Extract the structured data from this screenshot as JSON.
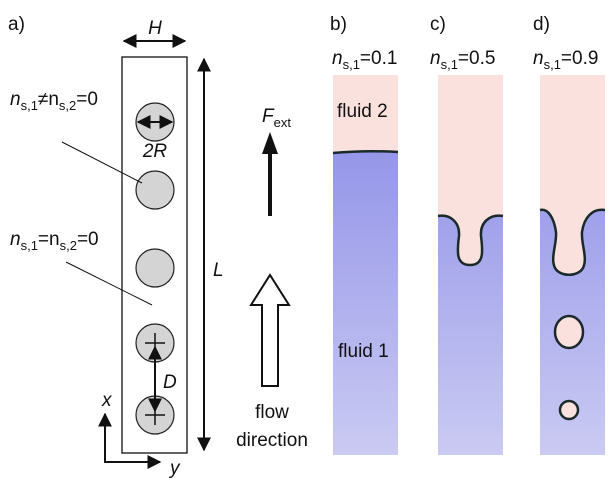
{
  "panel_a": {
    "label": "a)",
    "width_label": "H",
    "radius_label": "2R",
    "length_label": "L",
    "spacing_label": "D",
    "axis_x": "x",
    "axis_y": "y",
    "force": [
      "F",
      "ext"
    ],
    "flow_label": [
      "flow",
      "direction"
    ],
    "annotations": [
      [
        "n",
        "s,1",
        "≠n",
        "s,2",
        "=0"
      ],
      [
        "n",
        "s,1",
        "=n",
        "s,2",
        "=0"
      ]
    ]
  },
  "simulations": [
    {
      "label": "b)",
      "ns": [
        "n",
        "s,1",
        "=0.1"
      ],
      "upper_fluid": "fluid 2",
      "lower_fluid": "fluid 1"
    },
    {
      "label": "c)",
      "ns": [
        "n",
        "s,1",
        "=0.5"
      ]
    },
    {
      "label": "d)",
      "ns": [
        "n",
        "s,1",
        "=0.9"
      ]
    }
  ]
}
